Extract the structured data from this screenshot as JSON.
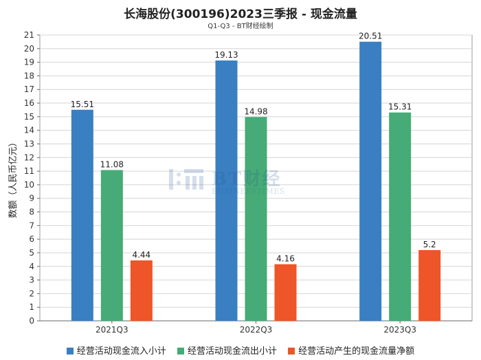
{
  "title": "长海股份(300196)2023三季报 - 现金流量",
  "subtitle": "Q1-Q3 - BT财经绘制",
  "watermark": {
    "brand": "BT财经",
    "sub": "BUSINESSTIMES"
  },
  "chart_data": {
    "type": "bar",
    "categories": [
      "2021Q3",
      "2022Q3",
      "2023Q3"
    ],
    "series": [
      {
        "name": "经营活动现金流入小计",
        "color": "#3a7fc1",
        "values": [
          15.51,
          19.13,
          20.51
        ],
        "labels": [
          "15.51",
          "19.13",
          "20.51"
        ]
      },
      {
        "name": "经营活动现金流出小计",
        "color": "#46ab76",
        "values": [
          11.08,
          14.98,
          15.31
        ],
        "labels": [
          "11.08",
          "14.98",
          "15.31"
        ]
      },
      {
        "name": "经营活动产生的现金流量净额",
        "color": "#ee5528",
        "values": [
          4.44,
          4.16,
          5.2
        ],
        "labels": [
          "4.44",
          "4.16",
          "5.2"
        ]
      }
    ],
    "ylabel": "数额（人民币亿元）",
    "xlabel": "",
    "ylim": [
      0,
      21
    ],
    "yticks": [
      0,
      1,
      2,
      3,
      4,
      5,
      6,
      7,
      8,
      9,
      10,
      11,
      12,
      13,
      14,
      15,
      16,
      17,
      18,
      19,
      20,
      21
    ],
    "grid": true,
    "legend_position": "bottom"
  }
}
